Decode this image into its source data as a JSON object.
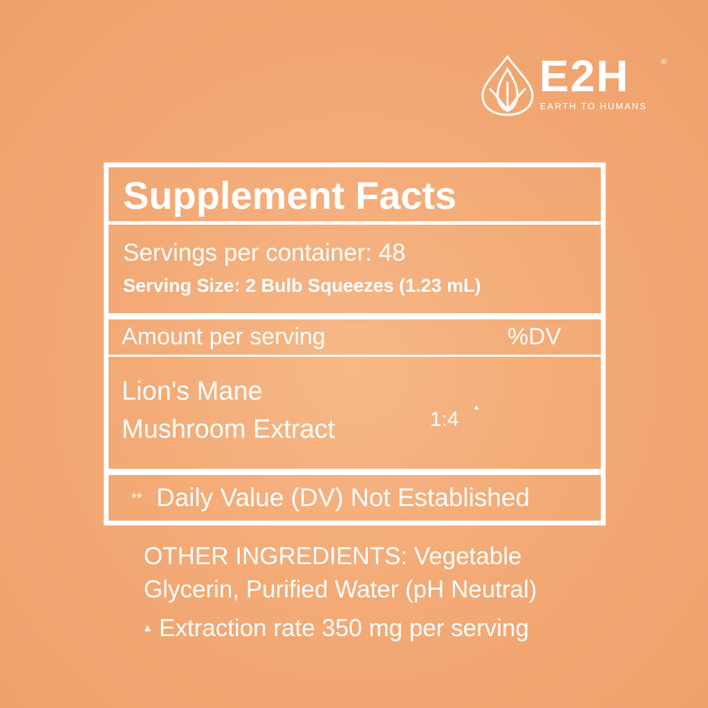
{
  "logo": {
    "brand": "E2H",
    "registered": "®",
    "tagline": "EARTH TO HUMANS"
  },
  "facts": {
    "title": "Supplement Facts",
    "servings": "Servings per container: 48",
    "serving_size": "Serving Size: 2 Bulb Squeezes (1.23 mL)",
    "amount_header": "Amount per serving",
    "dv_header": "%DV",
    "ingredient": [
      "Lion's Mane",
      "Mushroom Extract"
    ],
    "ratio": "1:4",
    "ratio_mark": "▲",
    "footnote_mark": "**",
    "footnote": "Daily Value (DV) Not Established"
  },
  "other": {
    "ingredients": [
      "OTHER INGREDIENTS: Vegetable",
      "Glycerin, Purified Water (pH Neutral)"
    ],
    "note_mark": "▲",
    "note": "Extraction rate 350 mg per serving"
  }
}
